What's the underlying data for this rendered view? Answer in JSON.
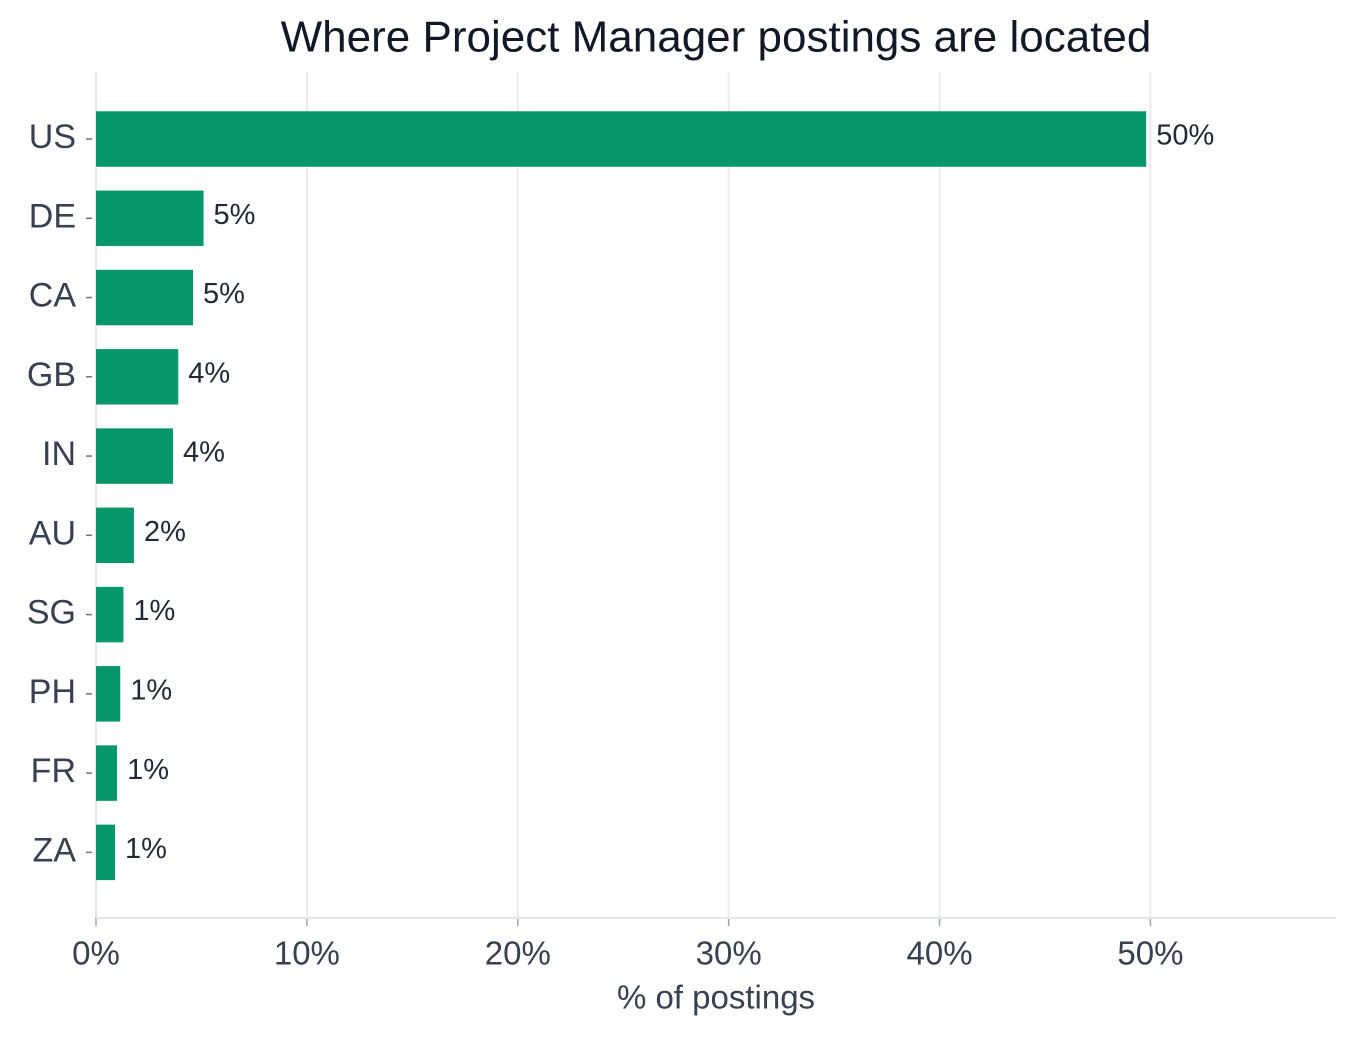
{
  "chart_data": {
    "type": "barh",
    "title": "Where Project Manager postings are located",
    "categories": [
      "US",
      "DE",
      "CA",
      "GB",
      "IN",
      "AU",
      "SG",
      "PH",
      "FR",
      "ZA"
    ],
    "values": [
      49.8,
      5.1,
      4.6,
      3.9,
      3.65,
      1.8,
      1.3,
      1.15,
      1.0,
      0.9
    ],
    "value_labels": [
      "50%",
      "5%",
      "5%",
      "4%",
      "4%",
      "2%",
      "1%",
      "1%",
      "1%",
      "1%"
    ],
    "color": "#08966b",
    "xlabel": "% of postings",
    "xlim": [
      0,
      58.8
    ],
    "xticks": [
      {
        "value": 0,
        "label": "0%"
      },
      {
        "value": 10,
        "label": "10%"
      },
      {
        "value": 20,
        "label": "20%"
      },
      {
        "value": 30,
        "label": "30%"
      },
      {
        "value": 40,
        "label": "40%"
      },
      {
        "value": 50,
        "label": "50%"
      }
    ],
    "grid": true
  }
}
